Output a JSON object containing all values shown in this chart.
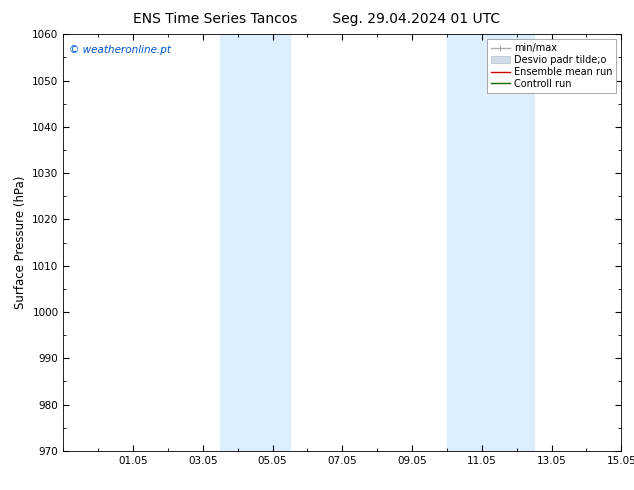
{
  "title_left": "ENS Time Series Tancos",
  "title_right": "Seg. 29.04.2024 01 UTC",
  "ylabel": "Surface Pressure (hPa)",
  "ylim": [
    970,
    1060
  ],
  "yticks": [
    970,
    980,
    990,
    1000,
    1010,
    1020,
    1030,
    1040,
    1050,
    1060
  ],
  "xlim_start": 0,
  "xlim_end": 16,
  "xtick_labels": [
    "01.05",
    "03.05",
    "05.05",
    "07.05",
    "09.05",
    "11.05",
    "13.05",
    "15.05"
  ],
  "xtick_positions": [
    2,
    4,
    6,
    8,
    10,
    12,
    14,
    16
  ],
  "weekend_bands": [
    {
      "xmin": 4.5,
      "xmax": 6.5
    },
    {
      "xmin": 11.0,
      "xmax": 13.5
    }
  ],
  "weekend_color": "#ddeeff",
  "background_color": "#ffffff",
  "plot_bg_color": "#ffffff",
  "watermark_text": "© weatheronline.pt",
  "watermark_color": "#0055cc",
  "legend_entries": [
    {
      "label": "min/max",
      "color": "#aaaaaa",
      "lw": 1.0
    },
    {
      "label": "Desvio padr tilde;o",
      "color": "#ccddee",
      "lw": 7
    },
    {
      "label": "Ensemble mean run",
      "color": "#cc0000",
      "lw": 1.0
    },
    {
      "label": "Controll run",
      "color": "#006600",
      "lw": 1.0
    }
  ],
  "title_fontsize": 10,
  "tick_fontsize": 7.5,
  "ylabel_fontsize": 8.5,
  "legend_fontsize": 7.0,
  "watermark_fontsize": 7.5
}
